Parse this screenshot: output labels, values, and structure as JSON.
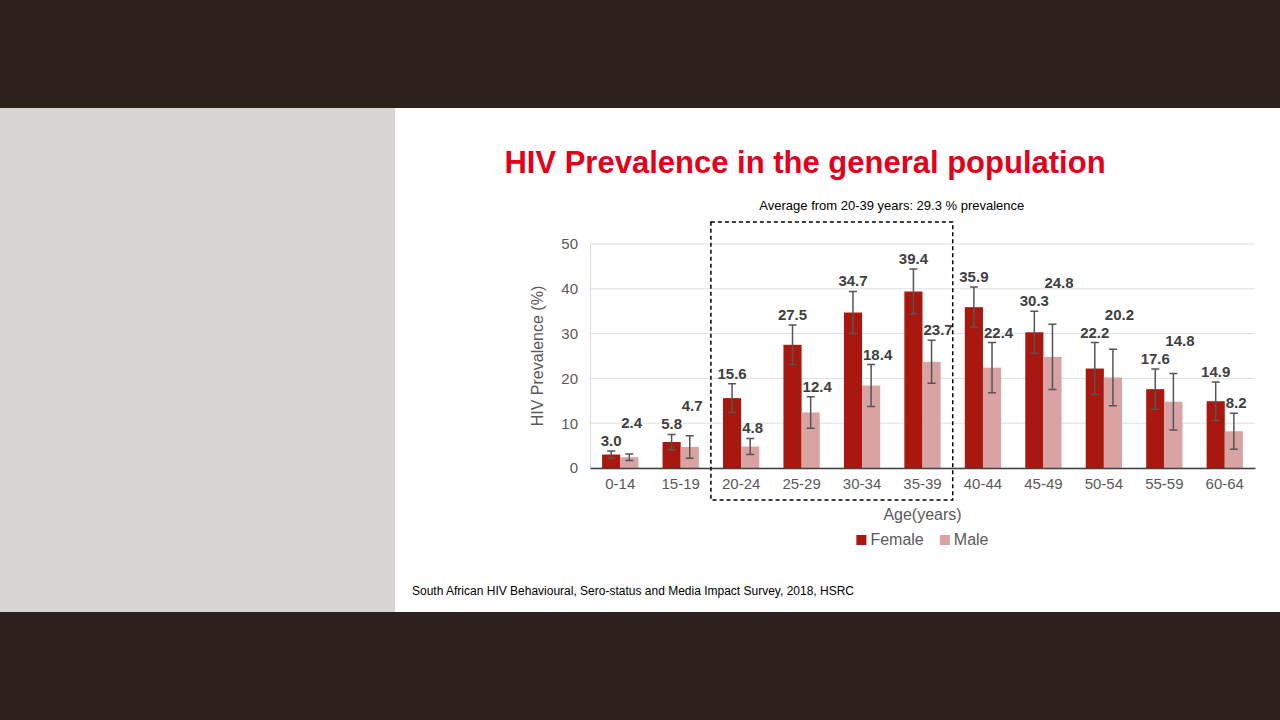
{
  "chart_data": {
    "type": "bar",
    "title": "HIV Prevalence in the general population",
    "x_label": "Age(years)",
    "y_label": "HIV Prevalence (%)",
    "categories": [
      "0-14",
      "15-19",
      "20-24",
      "25-29",
      "30-34",
      "35-39",
      "40-44",
      "45-49",
      "50-54",
      "55-59",
      "60-64"
    ],
    "series": [
      {
        "name": "Female",
        "color": "#a8180f",
        "values": [
          3.0,
          5.8,
          15.6,
          27.5,
          34.7,
          39.4,
          35.9,
          30.3,
          22.2,
          17.6,
          14.9
        ],
        "value_labels": [
          "3.0",
          "5.8",
          "15.6",
          "27.5",
          "34.7",
          "39.4",
          "35.9",
          "30.3",
          "22.2",
          "17.6",
          "14.9"
        ],
        "errors": [
          0.8,
          1.7,
          3.2,
          4.4,
          4.7,
          5.0,
          4.5,
          4.7,
          5.8,
          4.5,
          4.3
        ]
      },
      {
        "name": "Male",
        "color": "#d9a3a3",
        "values": [
          2.4,
          4.7,
          4.8,
          12.4,
          18.4,
          23.7,
          22.4,
          24.8,
          20.2,
          14.8,
          8.2
        ],
        "value_labels": [
          "2.4",
          "4.7",
          "4.8",
          "12.4",
          "18.4",
          "23.7",
          "22.4",
          "24.8",
          "20.2",
          "14.8",
          "8.2"
        ],
        "errors": [
          0.7,
          2.5,
          1.8,
          3.5,
          4.7,
          4.8,
          5.6,
          7.3,
          6.3,
          6.3,
          4.0
        ]
      }
    ],
    "ylim": [
      0,
      50
    ],
    "yticks": [
      0,
      10,
      20,
      30,
      40,
      50
    ],
    "grid": true,
    "legend": "bottom",
    "data_labels": true,
    "annotations": [
      {
        "text": "Average from 20-39 years: 29.3 % prevalence",
        "categories": [
          "20-24",
          "35-39"
        ]
      }
    ],
    "source": "South African HIV Behavioural, Sero-status and Media Impact Survey, 2018, HSRC"
  }
}
